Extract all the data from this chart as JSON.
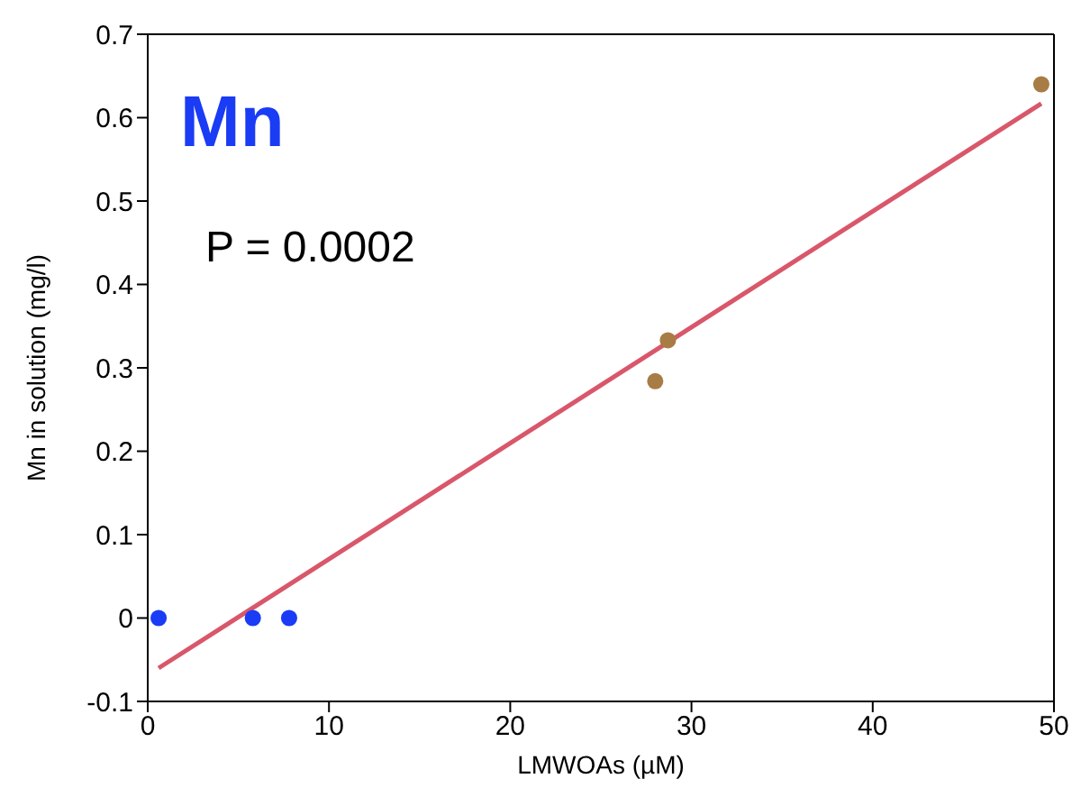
{
  "chart_data": {
    "type": "scatter",
    "xlabel": "LMWOAs (µM)",
    "ylabel": "Mn in solution (mg/l)",
    "annotations": [
      "Mn",
      "P = 0.0002"
    ],
    "xlim": [
      0,
      50
    ],
    "xticks": [
      0,
      10,
      20,
      30,
      40,
      50
    ],
    "ylim": [
      -0.1,
      0.7
    ],
    "yticks": [
      -0.1,
      0,
      0.1,
      0.2,
      0.3,
      0.4,
      0.5,
      0.6,
      0.7
    ],
    "grid": false,
    "legend": false,
    "marker": "circle",
    "series": [
      {
        "type": "line",
        "marker": "none",
        "color": "#d9576a",
        "x": [
          0.6,
          49.3
        ],
        "values": [
          -0.06,
          0.617
        ]
      },
      {
        "color": "#1a3cf5",
        "x": [
          0.6,
          5.8,
          7.8
        ],
        "values": [
          0.0,
          0.0,
          0.0
        ]
      },
      {
        "color": "#a87c45",
        "x": [
          28.0,
          28.7,
          49.3
        ],
        "values": [
          0.284,
          0.333,
          0.64
        ]
      }
    ]
  }
}
